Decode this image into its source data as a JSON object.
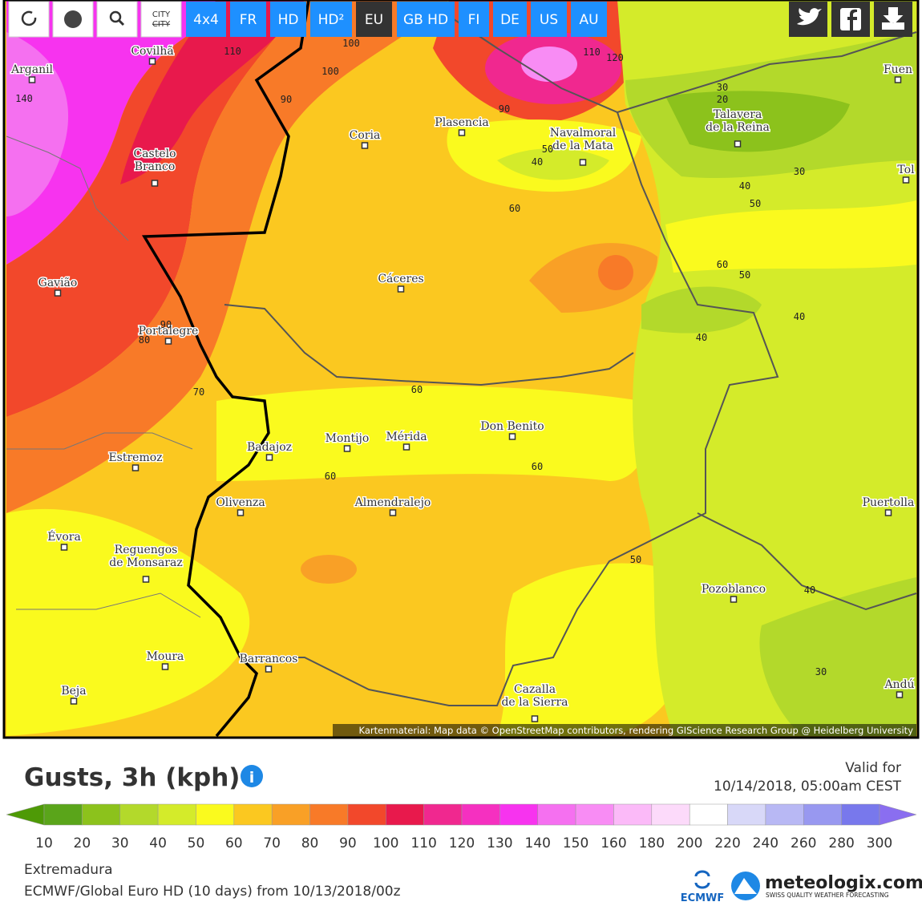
{
  "toolbar": {
    "city_toggle": [
      "CITY",
      "CITY"
    ],
    "buttons": [
      "4x4",
      "FR",
      "HD",
      "HD²",
      "EU",
      "GB HD",
      "FI",
      "DE",
      "US",
      "AU"
    ]
  },
  "map": {
    "cities": [
      [
        "Covilhã"
      ],
      [
        "Arganil"
      ],
      [
        "Castelo",
        "Branco"
      ],
      [
        "Gavião"
      ],
      [
        "Portalegre"
      ],
      [
        "Coria"
      ],
      [
        "Plasencia"
      ],
      [
        "Navalmoral",
        "de la Mata"
      ],
      [
        "Talavera",
        "de la Reina"
      ],
      [
        "Fuen"
      ],
      [
        "Tol"
      ],
      [
        "Cáceres"
      ],
      [
        "Badajoz"
      ],
      [
        "Montijo"
      ],
      [
        "Mérida"
      ],
      [
        "Don Benito"
      ],
      [
        "Estremoz"
      ],
      [
        "Olivenza"
      ],
      [
        "Almendralejo"
      ],
      [
        "Évora"
      ],
      [
        "Reguengos",
        "de Monsaraz"
      ],
      [
        "Pozoblanco"
      ],
      [
        "Puertolla"
      ],
      [
        "Moura"
      ],
      [
        "Barrancos"
      ],
      [
        "Beja"
      ],
      [
        "Cazalla",
        "de la Sierra"
      ],
      [
        "Andú"
      ]
    ],
    "contour_labels": [
      110,
      100,
      100,
      110,
      120,
      90,
      90,
      50,
      40,
      60,
      30,
      20,
      30,
      40,
      50,
      60,
      50,
      40,
      40,
      90,
      80,
      70,
      60,
      60,
      60,
      50,
      40,
      30,
      140
    ],
    "attribution": "Kartenmaterial: Map data © OpenStreetMap contributors, rendering GIScience Research Group @ Heidelberg University"
  },
  "header": {
    "title": "Gusts, 3h (kph)",
    "valid_for": "Valid for",
    "valid_time": "10/14/2018, 05:00am CEST"
  },
  "legend": {
    "ticks": [
      10,
      20,
      30,
      40,
      50,
      60,
      70,
      80,
      90,
      100,
      110,
      120,
      130,
      140,
      150,
      160,
      180,
      200,
      220,
      240,
      260,
      280,
      300
    ],
    "colors": [
      "#4e9a06",
      "#5aa51a",
      "#8cc21c",
      "#b3d92b",
      "#d4eb2a",
      "#fafa1e",
      "#fbc820",
      "#f9a026",
      "#f87a28",
      "#f2482b",
      "#e8194c",
      "#f0288f",
      "#f530c0",
      "#f733ef",
      "#f570f0",
      "#f88cf4",
      "#fbbaf8",
      "#fcdafa",
      "#ffffff",
      "#d8d8f8",
      "#b8b8f4",
      "#9898f0",
      "#7878ec",
      "#8a6ef0"
    ]
  },
  "footer": {
    "region": "Extremadura",
    "model": "ECMWF/Global Euro HD (10 days) from 10/13/2018/00z",
    "ecmwf": "ECMWF",
    "brand": "meteologix.com",
    "tagline": "SWISS QUALITY WEATHER FORECASTING"
  }
}
